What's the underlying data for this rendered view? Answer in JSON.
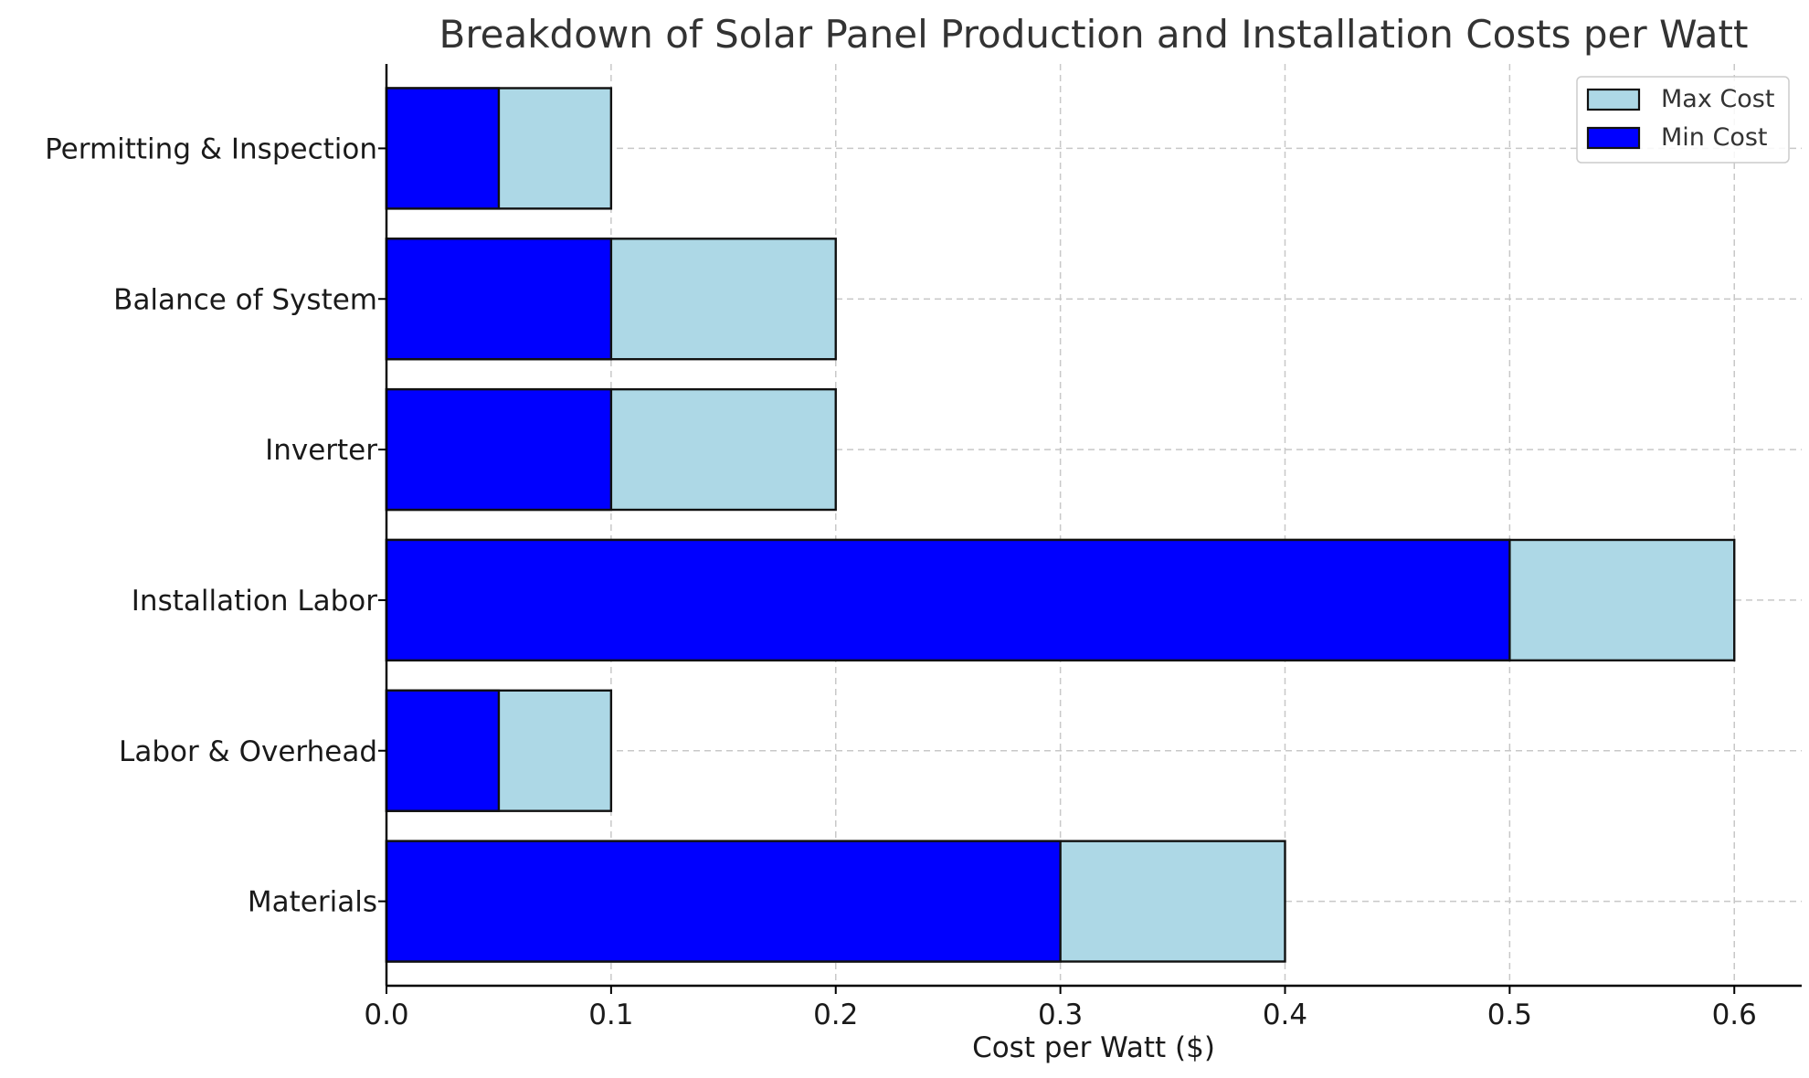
{
  "chart_data": {
    "type": "bar",
    "orientation": "horizontal",
    "title": "Breakdown of Solar Panel Production and Installation Costs per Watt",
    "xlabel": "Cost per Watt ($)",
    "ylabel": "",
    "xlim": [
      0,
      0.63
    ],
    "x_ticks": [
      "0.0",
      "0.1",
      "0.2",
      "0.3",
      "0.4",
      "0.5",
      "0.6"
    ],
    "x_tick_values": [
      0,
      0.1,
      0.2,
      0.3,
      0.4,
      0.5,
      0.6
    ],
    "categories": [
      "Materials",
      "Labor & Overhead",
      "Installation Labor",
      "Inverter",
      "Balance of System",
      "Permitting & Inspection"
    ],
    "series": [
      {
        "name": "Max Cost",
        "values": [
          0.4,
          0.1,
          0.6,
          0.2,
          0.2,
          0.1
        ],
        "color": "#add8e6"
      },
      {
        "name": "Min Cost",
        "values": [
          0.3,
          0.05,
          0.5,
          0.1,
          0.1,
          0.05
        ],
        "color": "#0000ff"
      }
    ],
    "grid": true,
    "legend": {
      "position": "top-right",
      "entries": [
        "Max Cost",
        "Min Cost"
      ]
    }
  }
}
